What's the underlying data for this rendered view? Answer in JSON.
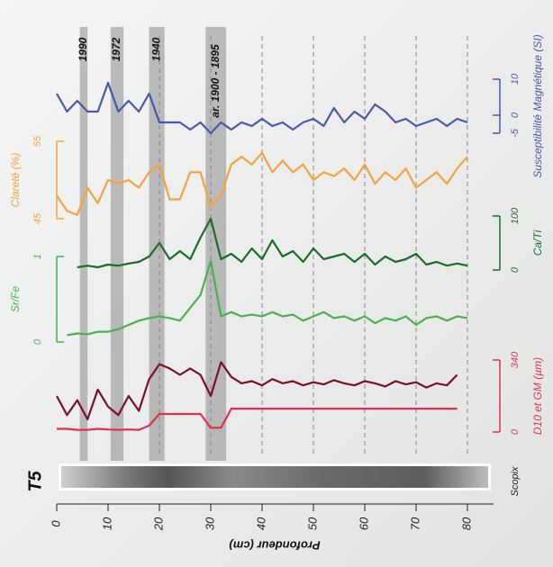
{
  "chart_data": {
    "type": "line",
    "x": [
      0,
      2,
      4,
      6,
      8,
      10,
      12,
      14,
      16,
      18,
      20,
      22,
      24,
      26,
      28,
      30,
      32,
      34,
      36,
      38,
      40,
      42,
      44,
      46,
      48,
      50,
      52,
      54,
      56,
      58,
      60,
      62,
      64,
      66,
      68,
      70,
      72,
      74,
      76,
      78,
      80
    ],
    "xlim": [
      0,
      85
    ],
    "xticks": [
      0,
      10,
      20,
      30,
      40,
      50,
      60,
      70,
      80
    ],
    "xlabel": "Profondeur (cm)",
    "core_label": "T5",
    "image_label": "Scopix",
    "events": [
      {
        "label": "1990",
        "range": [
          4.5,
          6
        ]
      },
      {
        "label": "1972",
        "range": [
          10.5,
          13
        ]
      },
      {
        "label": "1940",
        "range": [
          18,
          21
        ]
      },
      {
        "label": "ar. 1900 - 1895",
        "range": [
          29,
          33
        ]
      }
    ],
    "panels": [
      {
        "title": "Susceptibilité Magnétique (SI)",
        "side": "right",
        "color": "#4a58a8",
        "ylim": [
          -5,
          10
        ],
        "yticks": [
          -5,
          0,
          10
        ],
        "series": [
          {
            "color": "#4a58a8",
            "values": [
              6,
              1,
              4,
              1,
              1,
              9,
              1,
              4,
              1,
              6,
              -2,
              -2,
              -2,
              -4,
              -2,
              -5,
              -2,
              -4,
              -2,
              -3,
              -1,
              -3,
              -2,
              -4,
              -2,
              -1,
              -3,
              2,
              -2,
              1,
              -1,
              3,
              1,
              -2,
              -1,
              -3,
              -2,
              -1,
              -3,
              -1,
              -2
            ]
          }
        ]
      },
      {
        "title": "Clareté (%)",
        "side": "left",
        "color": "#f5a340",
        "ylim": [
          45,
          55
        ],
        "yticks": [
          45,
          55
        ],
        "series": [
          {
            "color": "#f5a340",
            "values": [
              48,
              46,
              45.5,
              49,
              47,
              50,
              49.5,
              50,
              49,
              51,
              52,
              47.5,
              47.5,
              51,
              51,
              46.5,
              48,
              52,
              53,
              52,
              53.5,
              51,
              52.5,
              51,
              52,
              50,
              51,
              50.5,
              51.5,
              50,
              52,
              49.5,
              51,
              50,
              51.5,
              49,
              50,
              51,
              49.5,
              51.5,
              53
            ]
          }
        ]
      },
      {
        "title": "Ca/Ti",
        "side": "right",
        "color": "#1e6b2a",
        "ylim": [
          0,
          100
        ],
        "yticks": [
          0,
          100
        ],
        "series": [
          {
            "color": "#1e6b2a",
            "values": [
              null,
              null,
              5,
              8,
              5,
              10,
              8,
              12,
              15,
              25,
              50,
              20,
              35,
              20,
              60,
              95,
              20,
              30,
              15,
              40,
              20,
              55,
              25,
              35,
              15,
              40,
              20,
              25,
              30,
              15,
              30,
              10,
              25,
              15,
              20,
              30,
              10,
              15,
              8,
              12,
              8
            ]
          }
        ]
      },
      {
        "title": "Sr/Fe",
        "side": "left",
        "color": "#4caf50",
        "ylim": [
          0,
          1
        ],
        "yticks": [
          0,
          1
        ],
        "series": [
          {
            "color": "#4caf50",
            "values": [
              null,
              0.08,
              0.1,
              0.09,
              0.12,
              0.12,
              0.15,
              0.2,
              0.25,
              0.28,
              0.3,
              0.28,
              0.25,
              0.4,
              0.55,
              0.95,
              0.3,
              0.35,
              0.3,
              0.32,
              0.3,
              0.35,
              0.3,
              0.32,
              0.25,
              0.3,
              0.35,
              0.28,
              0.3,
              0.25,
              0.3,
              0.22,
              0.28,
              0.25,
              0.3,
              0.2,
              0.28,
              0.3,
              0.25,
              0.3,
              0.28
            ]
          }
        ]
      },
      {
        "title": "D10 et GM (µm)",
        "side": "right",
        "color": "#e0304e",
        "ylim": [
          0,
          340
        ],
        "yticks": [
          0,
          340
        ],
        "series": [
          {
            "color": "#7a0f2a",
            "values": [
              170,
              80,
              150,
              60,
              200,
              120,
              80,
              170,
              100,
              250,
              320,
              300,
              270,
              300,
              270,
              170,
              330,
              260,
              230,
              240,
              220,
              250,
              230,
              240,
              220,
              235,
              225,
              245,
              230,
              220,
              240,
              230,
              215,
              240,
              225,
              235,
              210,
              230,
              220,
              270,
              null
            ]
          },
          {
            "color": "#e0304e",
            "values": [
              15,
              15,
              10,
              10,
              15,
              12,
              10,
              12,
              10,
              30,
              85,
              85,
              85,
              85,
              85,
              20,
              20,
              110,
              110,
              110,
              110,
              110,
              110,
              110,
              110,
              110,
              110,
              110,
              110,
              110,
              110,
              110,
              110,
              110,
              110,
              110,
              110,
              110,
              110,
              110,
              null
            ]
          }
        ]
      }
    ]
  }
}
